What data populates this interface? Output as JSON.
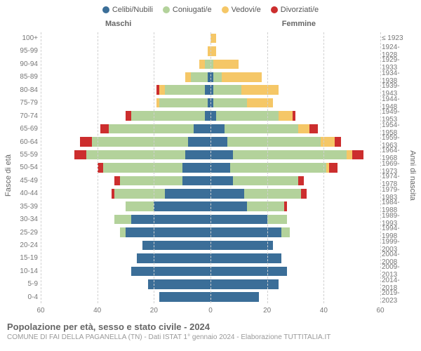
{
  "legend": {
    "items": [
      {
        "label": "Celibi/Nubili",
        "color": "#3b6e98"
      },
      {
        "label": "Coniugati/e",
        "color": "#b3d29b"
      },
      {
        "label": "Vedovi/e",
        "color": "#f5c767"
      },
      {
        "label": "Divorziati/e",
        "color": "#cc2e2e"
      }
    ]
  },
  "side_labels": {
    "left": "Maschi",
    "right": "Femmine"
  },
  "axis_labels": {
    "left": "Fasce di età",
    "right": "Anni di nascita"
  },
  "xaxis": {
    "min": -60,
    "max": 60,
    "ticks": [
      -60,
      -40,
      -20,
      0,
      20,
      40,
      60
    ]
  },
  "categories": [
    {
      "age": "100+",
      "year": "≤ 1923",
      "m": [
        0,
        0,
        0,
        0
      ],
      "f": [
        0,
        0,
        2,
        0
      ]
    },
    {
      "age": "95-99",
      "year": "1924-1928",
      "m": [
        0,
        0,
        1,
        0
      ],
      "f": [
        0,
        0,
        2,
        0
      ]
    },
    {
      "age": "90-94",
      "year": "1929-1933",
      "m": [
        0,
        2,
        2,
        0
      ],
      "f": [
        0,
        1,
        9,
        0
      ]
    },
    {
      "age": "85-89",
      "year": "1934-1938",
      "m": [
        1,
        6,
        2,
        0
      ],
      "f": [
        1,
        3,
        14,
        0
      ]
    },
    {
      "age": "80-84",
      "year": "1939-1943",
      "m": [
        2,
        14,
        2,
        1
      ],
      "f": [
        1,
        10,
        13,
        0
      ]
    },
    {
      "age": "75-79",
      "year": "1944-1948",
      "m": [
        1,
        17,
        1,
        0
      ],
      "f": [
        1,
        12,
        9,
        0
      ]
    },
    {
      "age": "70-74",
      "year": "1949-1953",
      "m": [
        2,
        26,
        0,
        2
      ],
      "f": [
        2,
        22,
        5,
        1
      ]
    },
    {
      "age": "65-69",
      "year": "1954-1958",
      "m": [
        6,
        30,
        0,
        3
      ],
      "f": [
        5,
        26,
        4,
        3
      ]
    },
    {
      "age": "60-64",
      "year": "1959-1963",
      "m": [
        8,
        34,
        0,
        4
      ],
      "f": [
        6,
        33,
        5,
        2
      ]
    },
    {
      "age": "55-59",
      "year": "1964-1968",
      "m": [
        9,
        35,
        0,
        4
      ],
      "f": [
        8,
        40,
        2,
        4
      ]
    },
    {
      "age": "50-54",
      "year": "1969-1973",
      "m": [
        10,
        28,
        0,
        2
      ],
      "f": [
        7,
        34,
        1,
        3
      ]
    },
    {
      "age": "45-49",
      "year": "1974-1978",
      "m": [
        10,
        22,
        0,
        2
      ],
      "f": [
        8,
        23,
        0,
        2
      ]
    },
    {
      "age": "40-44",
      "year": "1979-1983",
      "m": [
        16,
        18,
        0,
        1
      ],
      "f": [
        12,
        20,
        0,
        2
      ]
    },
    {
      "age": "35-39",
      "year": "1984-1988",
      "m": [
        20,
        10,
        0,
        0
      ],
      "f": [
        13,
        13,
        0,
        1
      ]
    },
    {
      "age": "30-34",
      "year": "1989-1993",
      "m": [
        28,
        6,
        0,
        0
      ],
      "f": [
        20,
        7,
        0,
        0
      ]
    },
    {
      "age": "25-29",
      "year": "1994-1998",
      "m": [
        30,
        2,
        0,
        0
      ],
      "f": [
        25,
        3,
        0,
        0
      ]
    },
    {
      "age": "20-24",
      "year": "1999-2003",
      "m": [
        24,
        0,
        0,
        0
      ],
      "f": [
        22,
        0,
        0,
        0
      ]
    },
    {
      "age": "15-19",
      "year": "2004-2008",
      "m": [
        26,
        0,
        0,
        0
      ],
      "f": [
        25,
        0,
        0,
        0
      ]
    },
    {
      "age": "10-14",
      "year": "2009-2013",
      "m": [
        28,
        0,
        0,
        0
      ],
      "f": [
        27,
        0,
        0,
        0
      ]
    },
    {
      "age": "5-9",
      "year": "2014-2018",
      "m": [
        22,
        0,
        0,
        0
      ],
      "f": [
        24,
        0,
        0,
        0
      ]
    },
    {
      "age": "0-4",
      "year": "2019-2023",
      "m": [
        18,
        0,
        0,
        0
      ],
      "f": [
        17,
        0,
        0,
        0
      ]
    }
  ],
  "title": "Popolazione per età, sesso e stato civile - 2024",
  "subtitle": "COMUNE DI FAI DELLA PAGANELLA (TN) - Dati ISTAT 1° gennaio 2024 - Elaborazione TUTTITALIA.IT",
  "chart_type": "population-pyramid",
  "background_color": "#ffffff",
  "grid_color": "#d0d0d0"
}
